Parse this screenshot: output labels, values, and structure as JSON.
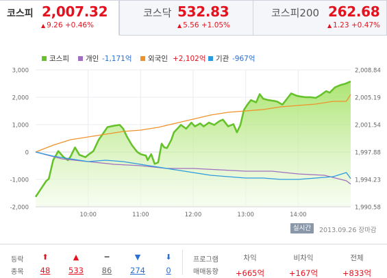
{
  "tabs": [
    {
      "name": "코스피",
      "value": "2,007.32",
      "change": "9.26 +0.46%",
      "active": true
    },
    {
      "name": "코스닥",
      "value": "532.83",
      "change": "5.56 +1.05%",
      "active": false
    },
    {
      "name": "코스피200",
      "value": "262.68",
      "change": "1.23 +0.47%",
      "active": false
    }
  ],
  "legend": {
    "kospi": "코스피",
    "individual": "개인",
    "individual_value": "-1,171억",
    "foreign": "외국인",
    "foreign_value": "+2,102억",
    "institution": "기관",
    "institution_value": "-967억"
  },
  "colors": {
    "kospi": "#66c22b",
    "individual": "#a06fc0",
    "foreign": "#f0922a",
    "institution": "#2b9ae0",
    "up": "#e4121f",
    "down": "#2a6fd6"
  },
  "chart_data": {
    "type": "line",
    "x_ticks": [
      "10:00",
      "11:00",
      "12:00",
      "13:00",
      "14:00"
    ],
    "x_range": [
      "09:00",
      "15:00"
    ],
    "left_axis": {
      "ticks": [
        "3,000",
        "2,000",
        "1,000",
        "0",
        "-1,000",
        "-2,000"
      ],
      "range": [
        -2000,
        3000
      ]
    },
    "right_axis": {
      "ticks": [
        "2,008.84",
        "2,005.19",
        "2,001.54",
        "1,997.88",
        "1,994.23",
        "1,990.58"
      ],
      "range": [
        1990.58,
        2008.84
      ]
    },
    "grid": true,
    "series": [
      {
        "name": "코스피",
        "axis": "right",
        "style": "area",
        "x": [
          "09:00",
          "09:08",
          "09:12",
          "09:15",
          "09:20",
          "09:26",
          "09:32",
          "09:37",
          "09:40",
          "09:45",
          "09:50",
          "09:57",
          "10:00",
          "10:06",
          "10:12",
          "10:18",
          "10:22",
          "10:30",
          "10:36",
          "10:40",
          "10:44",
          "10:50",
          "10:56",
          "11:00",
          "11:06",
          "11:08",
          "11:12",
          "11:16",
          "11:20",
          "11:24",
          "11:27",
          "11:30",
          "11:35",
          "11:38",
          "11:42",
          "11:46",
          "11:52",
          "11:58",
          "12:02",
          "12:08",
          "12:12",
          "12:18",
          "12:24",
          "12:30",
          "12:34",
          "12:40",
          "12:46",
          "12:50",
          "12:54",
          "12:58",
          "13:02",
          "13:06",
          "13:12",
          "13:16",
          "13:20",
          "13:26",
          "13:32",
          "13:36",
          "13:42",
          "13:48",
          "13:52",
          "13:58",
          "14:02",
          "14:08",
          "14:14",
          "14:20",
          "14:26",
          "14:32",
          "14:36",
          "14:42",
          "14:48",
          "14:54",
          "15:00"
        ],
        "values": [
          1991.9,
          1993.3,
          1994.0,
          1994.3,
          1996.8,
          1998.0,
          1997.2,
          1996.8,
          1997.3,
          1998.5,
          1997.5,
          1997.2,
          1997.5,
          1998.0,
          1999.5,
          2000.5,
          2001.2,
          2001.4,
          2001.5,
          2001.0,
          2000.0,
          1998.8,
          1997.9,
          1997.6,
          1997.4,
          1996.8,
          1997.6,
          1996.3,
          1996.5,
          1999.0,
          1998.5,
          1998.4,
          1999.5,
          2000.5,
          2001.0,
          2001.5,
          2001.0,
          2001.8,
          2001.3,
          2001.7,
          2001.3,
          2001.8,
          2001.5,
          2002.0,
          2002.2,
          2001.3,
          2001.6,
          2000.5,
          2001.5,
          2003.5,
          2004.2,
          2004.8,
          2004.5,
          2005.6,
          2005.0,
          2004.8,
          2004.7,
          2004.6,
          2004.2,
          2005.1,
          2005.7,
          2005.4,
          2005.3,
          2005.2,
          2005.2,
          2005.1,
          2005.5,
          2006.0,
          2005.8,
          2006.5,
          2006.8,
          2007.0,
          2007.3
        ]
      },
      {
        "name": "개인",
        "axis": "left",
        "x": [
          "09:00",
          "09:30",
          "10:00",
          "10:30",
          "11:00",
          "11:30",
          "12:00",
          "12:30",
          "13:00",
          "13:30",
          "14:00",
          "14:30",
          "14:55",
          "15:00"
        ],
        "values": [
          0,
          -250,
          -350,
          -450,
          -500,
          -600,
          -600,
          -650,
          -700,
          -700,
          -800,
          -850,
          -1050,
          -1171
        ]
      },
      {
        "name": "외국인",
        "axis": "left",
        "x": [
          "09:00",
          "09:20",
          "09:40",
          "10:00",
          "10:20",
          "10:40",
          "11:00",
          "11:20",
          "11:40",
          "12:00",
          "12:20",
          "12:40",
          "13:00",
          "13:20",
          "13:40",
          "14:00",
          "14:20",
          "14:40",
          "14:55",
          "15:00"
        ],
        "values": [
          0,
          250,
          450,
          550,
          650,
          750,
          800,
          900,
          1050,
          1200,
          1350,
          1450,
          1500,
          1550,
          1650,
          1700,
          1750,
          1850,
          1850,
          2102
        ]
      },
      {
        "name": "기관",
        "axis": "left",
        "x": [
          "09:00",
          "09:20",
          "09:40",
          "10:00",
          "10:20",
          "10:40",
          "11:00",
          "11:20",
          "11:40",
          "12:00",
          "12:20",
          "12:40",
          "13:00",
          "13:20",
          "13:40",
          "14:00",
          "14:20",
          "14:40",
          "14:55",
          "15:00"
        ],
        "values": [
          0,
          -150,
          -250,
          -350,
          -300,
          -350,
          -450,
          -550,
          -650,
          -750,
          -850,
          -900,
          -950,
          -950,
          -1000,
          -1000,
          -950,
          -900,
          -750,
          -967
        ]
      }
    ]
  },
  "status": {
    "live_label": "실시간",
    "date_text": "2013.09.26 장마감"
  },
  "stats": {
    "row1_label": "등락",
    "row2_label": "종목",
    "counts": [
      {
        "kind": "upper-limit",
        "arrow": "⬆",
        "value": "48"
      },
      {
        "kind": "up",
        "arrow": "▲",
        "value": "533"
      },
      {
        "kind": "flat",
        "arrow": "━",
        "value": "86"
      },
      {
        "kind": "down",
        "arrow": "▼",
        "value": "274"
      },
      {
        "kind": "lower-limit",
        "arrow": "⬇",
        "value": "0"
      }
    ],
    "program_label_1": "프로그램",
    "program_label_2": "매매동향",
    "program": [
      {
        "head": "차익",
        "value": "+665억"
      },
      {
        "head": "비차익",
        "value": "+167억"
      },
      {
        "head": "전체",
        "value": "+833억"
      }
    ]
  }
}
